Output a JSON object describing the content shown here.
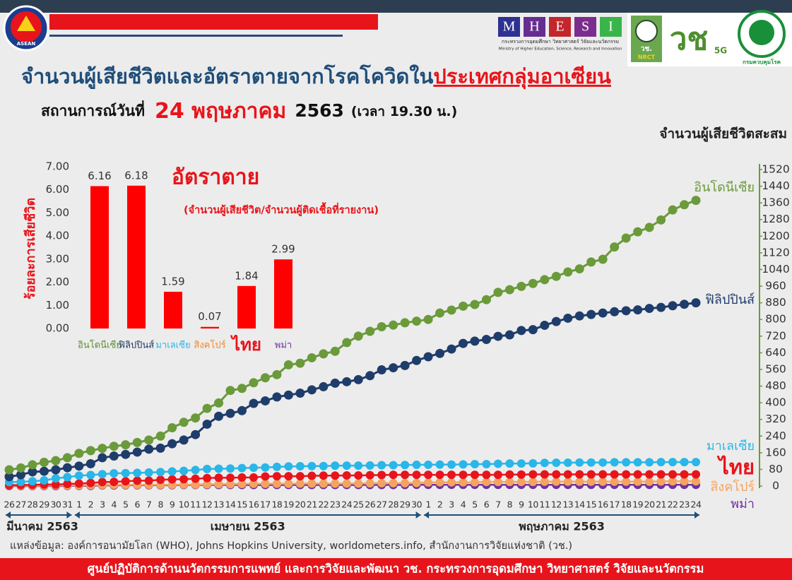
{
  "header": {
    "asean": "ASEAN",
    "mhesi": [
      "M",
      "H",
      "E",
      "S",
      "I"
    ],
    "ministry_th": "กระทรวงการอุดมศึกษา วิทยาศาสตร์ วิจัยและนวัตกรรม",
    "ministry_en": "Ministry of Higher Education, Science, Research and Innovation",
    "nrct_th": "วช.",
    "nrct_en": "NRCT",
    "brand": "วช",
    "brand_sub": "5G",
    "ddc": "กรมควบคุมโรค"
  },
  "title": [
    "จำนวนผู้เสียชีวิตและอัตราตายจากโรคโควิดใน",
    "ประเทศกลุ่มอาเซียน"
  ],
  "subtitle": [
    "สถานการณ์วันที่",
    "24 พฤษภาคม",
    "2563",
    "(เวลา 19.30 น.)"
  ],
  "chart_data": [
    {
      "type": "line",
      "y_label": "จำนวนผู้เสียชีวิตสะสม",
      "x": [
        "26",
        "27",
        "28",
        "29",
        "30",
        "31",
        "1",
        "2",
        "3",
        "4",
        "5",
        "6",
        "7",
        "8",
        "9",
        "10",
        "11",
        "12",
        "13",
        "14",
        "15",
        "16",
        "17",
        "18",
        "19",
        "20",
        "21",
        "22",
        "23",
        "24",
        "25",
        "26",
        "27",
        "28",
        "29",
        "30",
        "1",
        "2",
        "3",
        "4",
        "5",
        "6",
        "7",
        "8",
        "9",
        "10",
        "11",
        "12",
        "13",
        "14",
        "15",
        "16",
        "17",
        "18",
        "19",
        "20",
        "21",
        "22",
        "23",
        "24"
      ],
      "months": [
        "มีนาคม 2563",
        "เมษายน 2563",
        "พฤษภาคม 2563"
      ],
      "ylim": [
        0,
        1520
      ],
      "yticks": [
        0,
        80,
        160,
        240,
        320,
        400,
        480,
        560,
        640,
        720,
        800,
        880,
        960,
        1040,
        1120,
        1200,
        1280,
        1360,
        1440,
        1520
      ],
      "series": [
        {
          "name": "อินโดนีเซีย",
          "color": "#6a9a3a",
          "values": [
            78,
            87,
            102,
            114,
            122,
            136,
            157,
            170,
            181,
            191,
            198,
            209,
            221,
            240,
            280,
            306,
            327,
            373,
            399,
            459,
            469,
            496,
            520,
            535,
            582,
            590,
            616,
            635,
            647,
            689,
            720,
            743,
            765,
            773,
            784,
            792,
            800,
            831,
            845,
            864,
            872,
            895,
            930,
            943,
            959,
            973,
            991,
            1007,
            1028,
            1043,
            1076,
            1089,
            1148,
            1191,
            1221,
            1242,
            1278,
            1326,
            1351,
            1372
          ]
        },
        {
          "name": "ฟิลิปปินส์",
          "color": "#1f3d6b",
          "values": [
            45,
            54,
            68,
            71,
            78,
            88,
            96,
            107,
            136,
            144,
            152,
            163,
            177,
            182,
            203,
            221,
            247,
            297,
            335,
            349,
            362,
            397,
            409,
            428,
            437,
            446,
            462,
            477,
            494,
            501,
            511,
            530,
            558,
            568,
            579,
            603,
            621,
            637,
            658,
            685,
            696,
            704,
            719,
            726,
            747,
            751,
            772,
            790,
            806,
            817,
            824,
            831,
            837,
            842,
            846,
            853,
            858,
            866,
            873,
            880
          ]
        },
        {
          "name": "มาเลเซีย",
          "color": "#29b6e8",
          "values": [
            19,
            20,
            23,
            27,
            37,
            43,
            50,
            53,
            57,
            61,
            62,
            63,
            65,
            67,
            70,
            73,
            77,
            82,
            83,
            84,
            86,
            88,
            89,
            92,
            94,
            95,
            96,
            96,
            98,
            98,
            98,
            99,
            100,
            100,
            101,
            102,
            102,
            103,
            103,
            104,
            105,
            105,
            107,
            108,
            108,
            109,
            111,
            112,
            112,
            113,
            113,
            113,
            114,
            114,
            114,
            114,
            115,
            115,
            115,
            115
          ]
        },
        {
          "name": "ไทย",
          "color": "#e8141b",
          "values": [
            4,
            5,
            6,
            7,
            7,
            10,
            12,
            15,
            19,
            20,
            23,
            26,
            26,
            30,
            32,
            33,
            35,
            38,
            40,
            40,
            41,
            41,
            46,
            47,
            47,
            47,
            49,
            50,
            50,
            51,
            51,
            52,
            53,
            54,
            54,
            54,
            54,
            54,
            54,
            54,
            54,
            54,
            54,
            55,
            55,
            56,
            56,
            56,
            56,
            56,
            56,
            56,
            56,
            56,
            56,
            56,
            56,
            56,
            56,
            56
          ]
        },
        {
          "name": "สิงคโปร์",
          "color": "#f4a460",
          "values": [
            2,
            2,
            2,
            2,
            3,
            3,
            3,
            4,
            5,
            6,
            6,
            6,
            6,
            6,
            6,
            7,
            7,
            8,
            9,
            9,
            10,
            11,
            11,
            11,
            11,
            12,
            12,
            12,
            12,
            12,
            12,
            13,
            14,
            14,
            14,
            15,
            17,
            18,
            18,
            18,
            18,
            20,
            20,
            20,
            20,
            20,
            21,
            21,
            21,
            21,
            21,
            21,
            21,
            21,
            21,
            21,
            22,
            23,
            23,
            23
          ]
        },
        {
          "name": "พม่า",
          "color": "#7030a0",
          "values": [
            0,
            0,
            0,
            0,
            0,
            1,
            1,
            1,
            3,
            3,
            4,
            4,
            4,
            4,
            4,
            5,
            5,
            5,
            5,
            5,
            5,
            5,
            5,
            5,
            5,
            5,
            5,
            5,
            5,
            5,
            5,
            5,
            5,
            5,
            5,
            6,
            6,
            6,
            6,
            6,
            6,
            6,
            6,
            6,
            6,
            6,
            6,
            6,
            6,
            6,
            6,
            6,
            6,
            6,
            6,
            6,
            6,
            6,
            6,
            6
          ]
        }
      ]
    },
    {
      "type": "bar",
      "title": "อัตราตาย",
      "subtitle": "(จำนวนผู้เสียชีวิต/จำนวนผู้ติดเชื้อที่รายงาน)",
      "y_label": "ร้อยละการเสียชีวิต",
      "categories": [
        "อินโดนีเซีย",
        "ฟิลิปปินส์",
        "มาเลเซีย",
        "สิงคโปร์",
        "ไทย",
        "พม่า"
      ],
      "category_colors": [
        "#5b8f2e",
        "#1f3864",
        "#29b6e8",
        "#f08a24",
        "#e8141b",
        "#7030a0"
      ],
      "values": [
        6.16,
        6.18,
        1.59,
        0.07,
        1.84,
        2.99
      ],
      "color": "#ff0000",
      "ylim": [
        0,
        7
      ],
      "yticks": [
        {
          "value": 0,
          "label": "0.00"
        },
        {
          "value": 1,
          "label": "1.00"
        },
        {
          "value": 2,
          "label": "2.00"
        },
        {
          "value": 3,
          "label": "3.00"
        },
        {
          "value": 4,
          "label": "4.00"
        },
        {
          "value": 5,
          "label": "5.00"
        },
        {
          "value": 6,
          "label": "6.00"
        },
        {
          "value": 7,
          "label": "7.00"
        }
      ]
    }
  ],
  "source": "แหล่งข้อมูล: องค์การอนามัยโลก (WHO), Johns Hopkins University, worldometers.info, สำนักงานการวิจัยแห่งชาติ (วช.)",
  "footer": "ศูนย์ปฏิบัติการด้านนวัตกรรมการแพทย์ และการวิจัยและพัฒนา  วช.   กระทรวงการอุดมศึกษา วิทยาศาสตร์ วิจัยและนวัตกรรม"
}
